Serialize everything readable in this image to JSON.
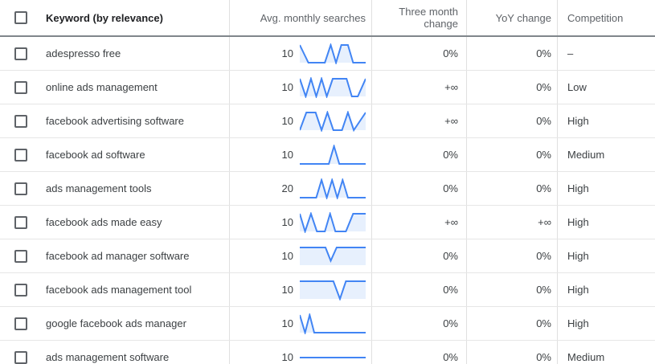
{
  "colors": {
    "spark_line": "#4285f4",
    "spark_fill": "#e7f0fd",
    "header_divider": "#80868b",
    "grid_line": "#e0e0e0"
  },
  "header": {
    "keyword": "Keyword (by relevance)",
    "avg_monthly": "Avg. monthly searches",
    "three_month": "Three month change",
    "yoy": "YoY change",
    "competition": "Competition"
  },
  "rows": [
    {
      "keyword": "adespresso free",
      "avg": "10",
      "three_month": "0%",
      "yoy": "0%",
      "competition": "–",
      "spark": {
        "fill": true,
        "points": [
          [
            0,
            1
          ],
          [
            13,
            0
          ],
          [
            38,
            0
          ],
          [
            47,
            1
          ],
          [
            55,
            0
          ],
          [
            63,
            1
          ],
          [
            73,
            1
          ],
          [
            81,
            0
          ],
          [
            100,
            0
          ]
        ]
      }
    },
    {
      "keyword": "online ads management",
      "avg": "10",
      "three_month": "+∞",
      "yoy": "0%",
      "competition": "Low",
      "spark": {
        "fill": true,
        "points": [
          [
            0,
            1
          ],
          [
            9,
            0
          ],
          [
            17,
            1
          ],
          [
            25,
            0
          ],
          [
            33,
            1
          ],
          [
            41,
            0
          ],
          [
            50,
            1
          ],
          [
            71,
            1
          ],
          [
            79,
            0
          ],
          [
            88,
            0
          ],
          [
            100,
            1
          ]
        ]
      }
    },
    {
      "keyword": "facebook advertising software",
      "avg": "10",
      "three_month": "+∞",
      "yoy": "0%",
      "competition": "High",
      "spark": {
        "fill": true,
        "points": [
          [
            0,
            0
          ],
          [
            10,
            1
          ],
          [
            24,
            1
          ],
          [
            33,
            0
          ],
          [
            42,
            1
          ],
          [
            51,
            0
          ],
          [
            64,
            0
          ],
          [
            73,
            1
          ],
          [
            82,
            0
          ],
          [
            100,
            1
          ]
        ]
      }
    },
    {
      "keyword": "facebook ad software",
      "avg": "10",
      "three_month": "0%",
      "yoy": "0%",
      "competition": "Medium",
      "spark": {
        "fill": true,
        "points": [
          [
            0,
            0
          ],
          [
            44,
            0
          ],
          [
            52,
            1
          ],
          [
            60,
            0
          ],
          [
            100,
            0
          ]
        ]
      }
    },
    {
      "keyword": "ads management tools",
      "avg": "20",
      "three_month": "0%",
      "yoy": "0%",
      "competition": "High",
      "spark": {
        "fill": true,
        "points": [
          [
            0,
            0
          ],
          [
            25,
            0
          ],
          [
            33,
            1
          ],
          [
            41,
            0
          ],
          [
            49,
            1
          ],
          [
            57,
            0
          ],
          [
            65,
            1
          ],
          [
            73,
            0
          ],
          [
            100,
            0
          ]
        ]
      }
    },
    {
      "keyword": "facebook ads made easy",
      "avg": "10",
      "three_month": "+∞",
      "yoy": "+∞",
      "competition": "High",
      "spark": {
        "fill": true,
        "points": [
          [
            0,
            1
          ],
          [
            8,
            0
          ],
          [
            17,
            1
          ],
          [
            26,
            0
          ],
          [
            38,
            0
          ],
          [
            46,
            1
          ],
          [
            54,
            0
          ],
          [
            70,
            0
          ],
          [
            81,
            1
          ],
          [
            100,
            1
          ]
        ]
      }
    },
    {
      "keyword": "facebook ad manager software",
      "avg": "10",
      "three_month": "0%",
      "yoy": "0%",
      "competition": "High",
      "spark": {
        "fill": true,
        "points": [
          [
            0,
            1
          ],
          [
            39,
            1
          ],
          [
            47,
            0.25
          ],
          [
            56,
            1
          ],
          [
            100,
            1
          ]
        ]
      }
    },
    {
      "keyword": "facebook ads management tool",
      "avg": "10",
      "three_month": "0%",
      "yoy": "0%",
      "competition": "High",
      "spark": {
        "fill": true,
        "points": [
          [
            0,
            1
          ],
          [
            51,
            1
          ],
          [
            61,
            0
          ],
          [
            70,
            1
          ],
          [
            100,
            1
          ]
        ]
      }
    },
    {
      "keyword": "google facebook ads manager",
      "avg": "10",
      "three_month": "0%",
      "yoy": "0%",
      "competition": "High",
      "spark": {
        "fill": true,
        "points": [
          [
            0,
            1
          ],
          [
            8,
            0
          ],
          [
            15,
            1
          ],
          [
            22,
            0
          ],
          [
            100,
            0
          ]
        ]
      }
    },
    {
      "keyword": "ads management software",
      "avg": "10",
      "three_month": "0%",
      "yoy": "0%",
      "competition": "Medium",
      "spark": {
        "fill": false,
        "points": [
          [
            0,
            0.5
          ],
          [
            100,
            0.5
          ]
        ]
      }
    }
  ]
}
